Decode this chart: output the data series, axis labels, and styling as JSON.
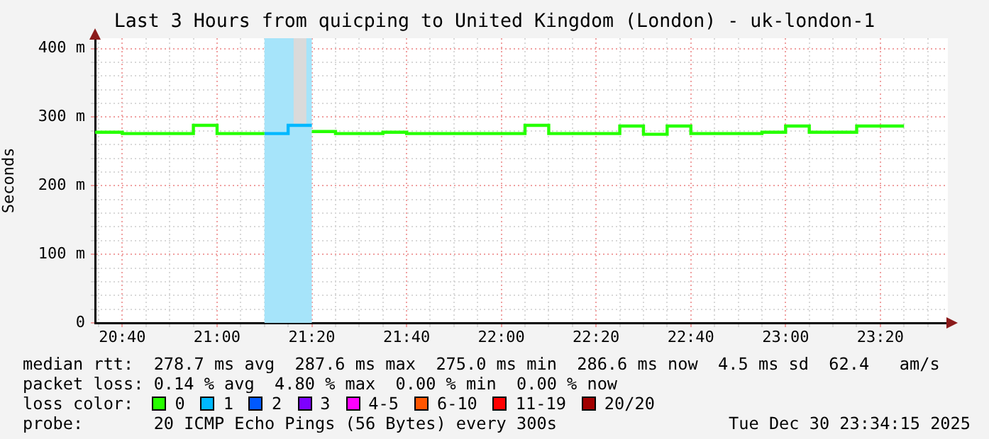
{
  "chart_data": {
    "type": "step",
    "title": "Last 3 Hours from quicping to United Kingdom (London) - uk-london-1",
    "ylabel": "Seconds",
    "legend_title": "loss color:",
    "legend": "bottom",
    "grid": true,
    "marker": "none",
    "xlim": [
      20.5708,
      23.5708
    ],
    "xticks": [
      {
        "value": 20.5833,
        "label": null
      },
      {
        "value": 20.6667,
        "label": "20:40"
      },
      {
        "value": 20.75,
        "label": null
      },
      {
        "value": 20.8333,
        "label": null
      },
      {
        "value": 20.9167,
        "label": null
      },
      {
        "value": 21.0,
        "label": "21:00"
      },
      {
        "value": 21.0833,
        "label": null
      },
      {
        "value": 21.1667,
        "label": null
      },
      {
        "value": 21.25,
        "label": null
      },
      {
        "value": 21.3333,
        "label": "21:20"
      },
      {
        "value": 21.4167,
        "label": null
      },
      {
        "value": 21.5,
        "label": null
      },
      {
        "value": 21.5833,
        "label": null
      },
      {
        "value": 21.6667,
        "label": "21:40"
      },
      {
        "value": 21.75,
        "label": null
      },
      {
        "value": 21.8333,
        "label": null
      },
      {
        "value": 21.9167,
        "label": null
      },
      {
        "value": 22.0,
        "label": "22:00"
      },
      {
        "value": 22.0833,
        "label": null
      },
      {
        "value": 22.1667,
        "label": null
      },
      {
        "value": 22.25,
        "label": null
      },
      {
        "value": 22.3333,
        "label": "22:20"
      },
      {
        "value": 22.4167,
        "label": null
      },
      {
        "value": 22.5,
        "label": null
      },
      {
        "value": 22.5833,
        "label": null
      },
      {
        "value": 22.6667,
        "label": "22:40"
      },
      {
        "value": 22.75,
        "label": null
      },
      {
        "value": 22.8333,
        "label": null
      },
      {
        "value": 22.9167,
        "label": null
      },
      {
        "value": 23.0,
        "label": "23:00"
      },
      {
        "value": 23.0833,
        "label": null
      },
      {
        "value": 23.1667,
        "label": null
      },
      {
        "value": 23.25,
        "label": null
      },
      {
        "value": 23.3333,
        "label": "23:20"
      },
      {
        "value": 23.4167,
        "label": null
      },
      {
        "value": 23.5,
        "label": null
      }
    ],
    "ylim": [
      0,
      415
    ],
    "yticks": [
      0,
      {
        "value": 20,
        "label": null
      },
      {
        "value": 40,
        "label": null
      },
      {
        "value": 60,
        "label": null
      },
      {
        "value": 80,
        "label": null
      },
      {
        "value": 100,
        "label": "100 m"
      },
      {
        "value": 120,
        "label": null
      },
      {
        "value": 140,
        "label": null
      },
      {
        "value": 160,
        "label": null
      },
      {
        "value": 180,
        "label": null
      },
      {
        "value": 200,
        "label": "200 m"
      },
      {
        "value": 220,
        "label": null
      },
      {
        "value": 240,
        "label": null
      },
      {
        "value": 260,
        "label": null
      },
      {
        "value": 280,
        "label": null
      },
      {
        "value": 300,
        "label": "300 m"
      },
      {
        "value": 320,
        "label": null
      },
      {
        "value": 340,
        "label": null
      },
      {
        "value": 360,
        "label": null
      },
      {
        "value": 380,
        "label": null
      },
      {
        "value": 400,
        "label": "400 m"
      }
    ],
    "bands": [
      {
        "axis": "x",
        "from": 21.1667,
        "to": 21.3333,
        "color": "#a6e4fa"
      }
    ],
    "series": [
      {
        "name": "0",
        "color": "#26ff00",
        "x": [
          20.5708,
          20.6667,
          20.9167,
          21.0,
          21.1667,
          21.25,
          21.3333,
          21.4167,
          21.5833,
          21.6667,
          22.0833,
          22.1667,
          22.4167,
          22.5,
          22.5833,
          22.6667,
          22.9167,
          23.0,
          23.0833,
          23.25,
          23.4167
        ],
        "values": [
          278,
          276,
          288,
          276,
          276,
          null,
          279,
          276,
          278,
          276,
          288,
          276,
          287,
          275,
          287,
          276,
          278,
          287,
          278,
          287,
          287
        ]
      },
      {
        "name": "1",
        "color": "#00b8ff",
        "x": [
          21.1667,
          21.25,
          21.3333
        ],
        "values": [
          276,
          288,
          288
        ]
      },
      {
        "type": "bar",
        "color": "#dadada",
        "x": [
          21.2917
        ],
        "base": [
          288
        ],
        "values": [
          127
        ]
      },
      {
        "name": "2",
        "color": "#0059ff"
      },
      {
        "name": "3",
        "color": "#7e00ff"
      },
      {
        "name": "4-5",
        "color": "#ff00ff"
      },
      {
        "name": "6-10",
        "color": "#ff5500"
      },
      {
        "name": "11-19",
        "color": "#ff0000"
      },
      {
        "name": "20/20",
        "color": "#a10000"
      }
    ],
    "annotations": [
      "median rtt:  278.7 ms avg  287.6 ms max  275.0 ms min  286.6 ms now  4.5 ms sd  62.4   am/s",
      "packet loss: 0.14 % avg  4.80 % max  0.00 % min  0.00 % now",
      "probe:       20 ICMP Echo Pings (56 Bytes) every 300s",
      "Tue Dec 30 23:34:15 2025"
    ]
  }
}
